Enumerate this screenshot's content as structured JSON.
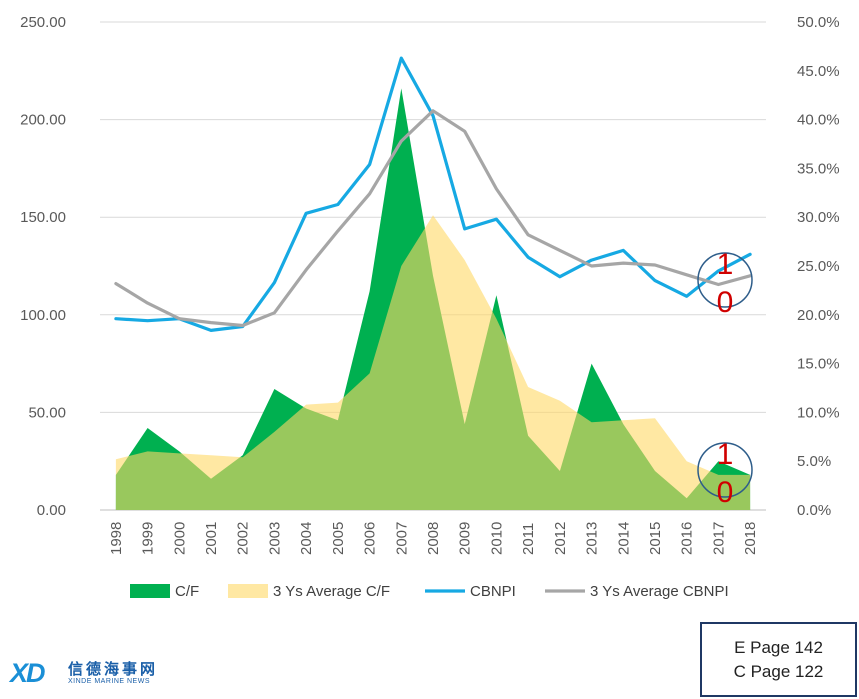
{
  "chart_data": {
    "type": "area",
    "categories": [
      "1998",
      "1999",
      "2000",
      "2001",
      "2002",
      "2003",
      "2004",
      "2005",
      "2006",
      "2007",
      "2008",
      "2009",
      "2010",
      "2011",
      "2012",
      "2013",
      "2014",
      "2015",
      "2016",
      "2017",
      "2018"
    ],
    "y_left": {
      "ylim": [
        0,
        250
      ],
      "ticks": [
        "0.00",
        "50.00",
        "100.00",
        "150.00",
        "200.00",
        "250.00"
      ]
    },
    "y_right": {
      "ylim": [
        0,
        50
      ],
      "ticks": [
        "0.0%",
        "5.0%",
        "10.0%",
        "15.0%",
        "20.0%",
        "25.0%",
        "30.0%",
        "35.0%",
        "40.0%",
        "45.0%",
        "50.0%"
      ]
    },
    "grid": true,
    "legend_position": "bottom",
    "series": [
      {
        "name": "C/F",
        "kind": "area",
        "axis": "left",
        "color": "#00b050",
        "values": [
          18,
          42,
          30,
          16,
          28,
          62,
          52,
          46,
          112,
          216,
          120,
          44,
          110,
          38,
          20,
          75,
          44,
          20,
          6,
          25,
          18
        ]
      },
      {
        "name": "3 Ys Average C/F",
        "kind": "area",
        "axis": "left",
        "color": "#ffd966",
        "values": [
          26,
          30,
          29,
          28,
          27,
          40,
          54,
          55,
          70,
          125,
          151,
          128,
          98,
          63,
          56,
          45,
          46,
          47,
          25,
          18,
          18
        ]
      },
      {
        "name": "CBNPI",
        "kind": "line",
        "axis": "right",
        "color": "#16a9e3",
        "values": [
          19.6,
          19.4,
          19.6,
          18.4,
          18.8,
          23.3,
          30.4,
          31.3,
          35.4,
          46.3,
          40.4,
          28.8,
          29.8,
          25.9,
          23.9,
          25.6,
          26.6,
          23.5,
          21.9,
          24.5,
          26.2
        ]
      },
      {
        "name": "3 Ys Average CBNPI",
        "kind": "line",
        "axis": "right",
        "color": "#a6a6a6",
        "values": [
          23.2,
          21.2,
          19.6,
          19.2,
          18.9,
          20.2,
          24.6,
          28.6,
          32.4,
          37.8,
          40.9,
          38.8,
          32.9,
          28.2,
          26.6,
          25.0,
          25.3,
          25.1,
          24.1,
          23.1,
          24.0
        ]
      }
    ],
    "annotations": [
      {
        "text": "1",
        "near": "2017 CBNPI"
      },
      {
        "text": "0",
        "near": "2017 CBNPI"
      },
      {
        "text": "1",
        "near": "2017 C/F"
      },
      {
        "text": "0",
        "near": "2017 C/F"
      }
    ]
  },
  "page_refs": {
    "english": "E Page 142",
    "chinese": "C Page 122"
  },
  "logo": {
    "mark": "XD",
    "chinese": "信德海事网",
    "english": "XINDE MARINE NEWS"
  }
}
